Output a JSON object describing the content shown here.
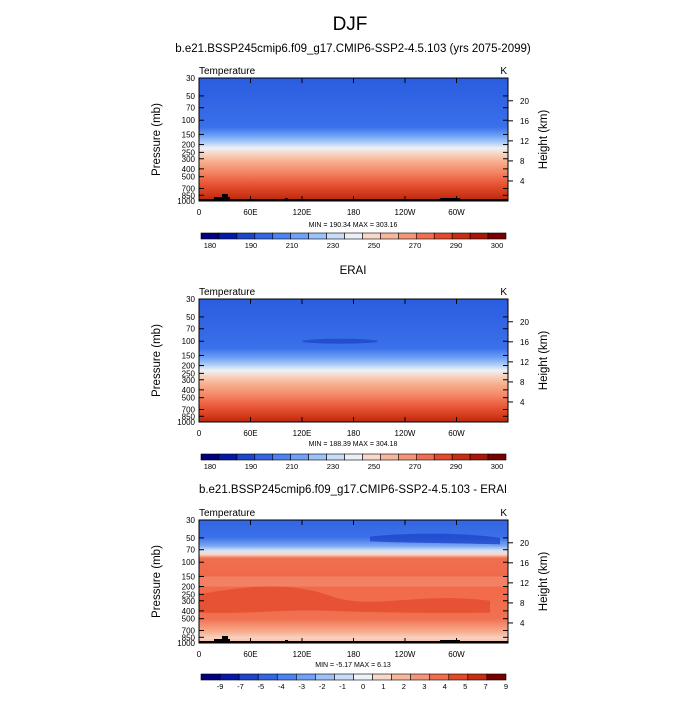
{
  "figure": {
    "title": "DJF"
  },
  "chart_data": [
    {
      "type": "heatmap",
      "title": "b.e21.BSSP245cmip6.f09_g17.CMIP6-SSP2-4.5.103 (yrs 2075-2099)",
      "variable": "Temperature",
      "units": "K",
      "ylabel": "Pressure (mb)",
      "ylabel_right": "Height (km)",
      "x_ticks": [
        "0",
        "60E",
        "120E",
        "180",
        "120W",
        "60W"
      ],
      "x_tick_values": [
        0,
        60,
        120,
        180,
        240,
        300
      ],
      "xlim": [
        0,
        360
      ],
      "y_ticks": [
        "30",
        "50",
        "70",
        "100",
        "150",
        "200",
        "250",
        "300",
        "400",
        "500",
        "700",
        "850",
        "1000"
      ],
      "y_tick_values": [
        30,
        50,
        70,
        100,
        150,
        200,
        250,
        300,
        400,
        500,
        700,
        850,
        1000
      ],
      "ylim": [
        1000,
        30
      ],
      "y_scale": "log",
      "height_ticks": [
        "20",
        "16",
        "12",
        "8",
        "4"
      ],
      "height_tick_values": [
        20,
        16,
        12,
        8,
        4
      ],
      "stats": "MIN = 190.34   MAX = 303.16",
      "min": 190.34,
      "max": 303.16,
      "colorbar": {
        "labels": [
          "180",
          "190",
          "210",
          "230",
          "250",
          "270",
          "290",
          "300"
        ],
        "colors": [
          "#00007f",
          "#0519a8",
          "#1e46c8",
          "#3366e0",
          "#4a84f0",
          "#6fa2f6",
          "#9cc2f8",
          "#c8dcf7",
          "#eaf0f5",
          "#f8d8c8",
          "#f7b79c",
          "#f49478",
          "#f06e50",
          "#e34a2c",
          "#c92d14",
          "#a81708",
          "#780000"
        ]
      }
    },
    {
      "type": "heatmap",
      "title": "ERAI",
      "variable": "Temperature",
      "units": "K",
      "ylabel": "Pressure (mb)",
      "ylabel_right": "Height (km)",
      "x_ticks": [
        "0",
        "60E",
        "120E",
        "180",
        "120W",
        "60W"
      ],
      "x_tick_values": [
        0,
        60,
        120,
        180,
        240,
        300
      ],
      "xlim": [
        0,
        360
      ],
      "y_ticks": [
        "30",
        "50",
        "70",
        "100",
        "150",
        "200",
        "250",
        "300",
        "400",
        "500",
        "700",
        "850",
        "1000"
      ],
      "y_tick_values": [
        30,
        50,
        70,
        100,
        150,
        200,
        250,
        300,
        400,
        500,
        700,
        850,
        1000
      ],
      "ylim": [
        1000,
        30
      ],
      "y_scale": "log",
      "height_ticks": [
        "20",
        "16",
        "12",
        "8",
        "4"
      ],
      "height_tick_values": [
        20,
        16,
        12,
        8,
        4
      ],
      "stats": "MIN = 188.39   MAX = 304.18",
      "min": 188.39,
      "max": 304.18,
      "colorbar": {
        "labels": [
          "180",
          "190",
          "210",
          "230",
          "250",
          "270",
          "290",
          "300"
        ],
        "colors": [
          "#00007f",
          "#0519a8",
          "#1e46c8",
          "#3366e0",
          "#4a84f0",
          "#6fa2f6",
          "#9cc2f8",
          "#c8dcf7",
          "#eaf0f5",
          "#f8d8c8",
          "#f7b79c",
          "#f49478",
          "#f06e50",
          "#e34a2c",
          "#c92d14",
          "#a81708",
          "#780000"
        ]
      }
    },
    {
      "type": "heatmap",
      "title": "b.e21.BSSP245cmip6.f09_g17.CMIP6-SSP2-4.5.103 - ERAI",
      "variable": "Temperature",
      "units": "K",
      "ylabel": "Pressure (mb)",
      "ylabel_right": "Height (km)",
      "x_ticks": [
        "0",
        "60E",
        "120E",
        "180",
        "120W",
        "60W"
      ],
      "x_tick_values": [
        0,
        60,
        120,
        180,
        240,
        300
      ],
      "xlim": [
        0,
        360
      ],
      "y_ticks": [
        "30",
        "50",
        "70",
        "100",
        "150",
        "200",
        "250",
        "300",
        "400",
        "500",
        "700",
        "850",
        "1000"
      ],
      "y_tick_values": [
        30,
        50,
        70,
        100,
        150,
        200,
        250,
        300,
        400,
        500,
        700,
        850,
        1000
      ],
      "ylim": [
        1000,
        30
      ],
      "y_scale": "log",
      "height_ticks": [
        "20",
        "16",
        "12",
        "8",
        "4"
      ],
      "height_tick_values": [
        20,
        16,
        12,
        8,
        4
      ],
      "stats": "MIN = -5.17   MAX =  6.13",
      "min": -5.17,
      "max": 6.13,
      "colorbar": {
        "labels": [
          "-9",
          "-7",
          "-5",
          "-4",
          "-3",
          "-2",
          "-1",
          "0",
          "1",
          "2",
          "3",
          "4",
          "5",
          "7",
          "9"
        ],
        "colors": [
          "#00007f",
          "#0519a8",
          "#1e46c8",
          "#3366e0",
          "#4a84f0",
          "#6fa2f6",
          "#9cc2f8",
          "#c8dcf7",
          "#eef3f8",
          "#f8d8c8",
          "#f7b79c",
          "#f49478",
          "#f06e50",
          "#e34a2c",
          "#c92d14",
          "#780000"
        ]
      }
    }
  ]
}
